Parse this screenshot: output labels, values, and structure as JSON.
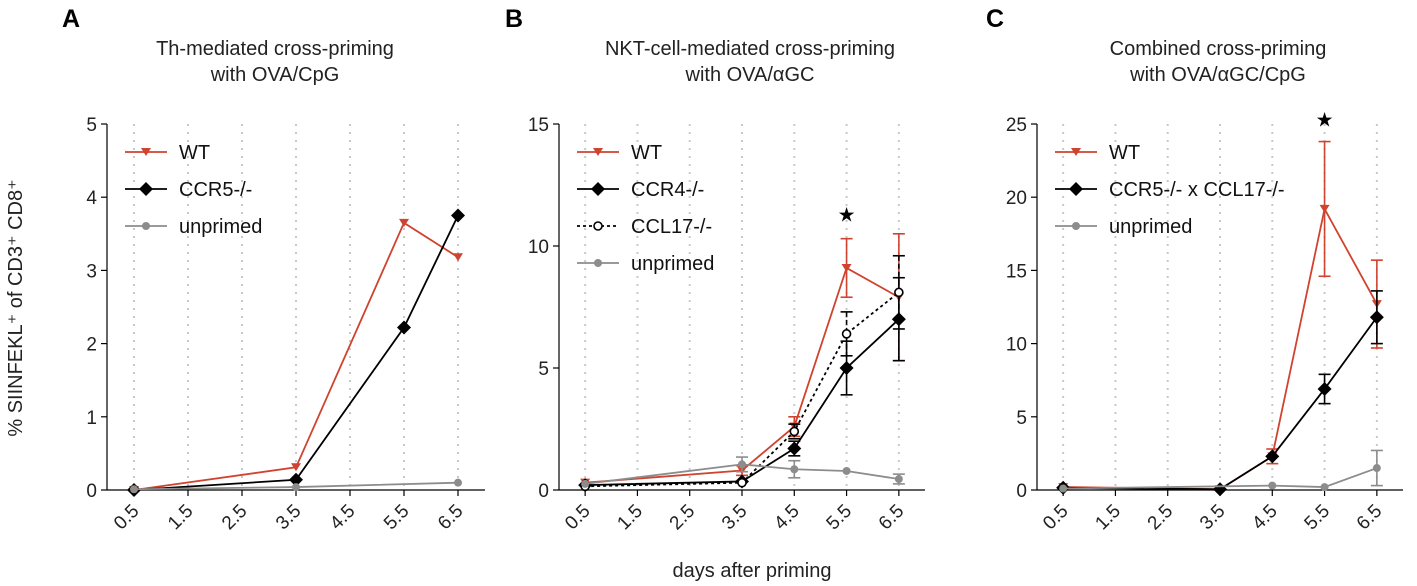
{
  "figure": {
    "xlabel_shared": "days after priming",
    "ylabel_shared": "% SIINFEKL⁺ of CD3⁺ CD8⁺"
  },
  "colors": {
    "wt": "#d0432f",
    "ko": "#000000",
    "unprimed": "#8c8c8c"
  },
  "chart_data": [
    {
      "panel": "A",
      "type": "line",
      "title": [
        "Th-mediated cross-priming",
        "with OVA/CpG"
      ],
      "xlabel": "days after priming",
      "ylabel": "% SIINFEKL⁺ of CD3⁺ CD8⁺",
      "categories": [
        "0.5",
        "1.5",
        "2.5",
        "3.5",
        "4.5",
        "5.5",
        "6.5"
      ],
      "ylim": [
        0,
        5
      ],
      "yticks": [
        0,
        1,
        2,
        3,
        4,
        5
      ],
      "grid": "vertical dotted",
      "legend_position": "top-left",
      "series": [
        {
          "name": "WT",
          "color_key": "wt",
          "marker": "triangle-down",
          "dash": "solid",
          "points": [
            {
              "x": 0.5,
              "y": 0.0
            },
            {
              "x": 3.5,
              "y": 0.31
            },
            {
              "x": 5.5,
              "y": 3.65
            },
            {
              "x": 6.5,
              "y": 3.18
            }
          ]
        },
        {
          "name": "CCR5-/-",
          "color_key": "ko",
          "marker": "diamond",
          "dash": "solid",
          "points": [
            {
              "x": 0.5,
              "y": 0.0
            },
            {
              "x": 3.5,
              "y": 0.14
            },
            {
              "x": 5.5,
              "y": 2.22
            },
            {
              "x": 6.5,
              "y": 3.75
            }
          ]
        },
        {
          "name": "unprimed",
          "color_key": "unprimed",
          "marker": "circle",
          "dash": "solid",
          "points": [
            {
              "x": 0.5,
              "y": 0.01
            },
            {
              "x": 3.5,
              "y": 0.04
            },
            {
              "x": 6.5,
              "y": 0.1
            }
          ]
        }
      ],
      "annotations": []
    },
    {
      "panel": "B",
      "type": "line",
      "title": [
        "NKT-cell-mediated cross-priming",
        "with OVA/αGC"
      ],
      "xlabel": "days after priming",
      "ylabel": "% SIINFEKL⁺ of CD3⁺ CD8⁺",
      "categories": [
        "0.5",
        "1.5",
        "2.5",
        "3.5",
        "4.5",
        "5.5",
        "6.5"
      ],
      "ylim": [
        0,
        15
      ],
      "yticks": [
        0,
        5,
        10,
        15
      ],
      "grid": "vertical dotted",
      "legend_position": "top-left",
      "series": [
        {
          "name": "WT",
          "color_key": "wt",
          "marker": "triangle-down",
          "dash": "solid",
          "points": [
            {
              "x": 0.5,
              "y": 0.3
            },
            {
              "x": 3.5,
              "y": 0.8,
              "err": 0.2
            },
            {
              "x": 4.5,
              "y": 2.6,
              "err": 0.4
            },
            {
              "x": 5.5,
              "y": 9.1,
              "err": 1.2
            },
            {
              "x": 6.5,
              "y": 7.9,
              "err": 2.6
            }
          ]
        },
        {
          "name": "CCR4-/-",
          "color_key": "ko",
          "marker": "diamond",
          "dash": "solid",
          "points": [
            {
              "x": 0.5,
              "y": 0.2
            },
            {
              "x": 3.5,
              "y": 0.35
            },
            {
              "x": 4.5,
              "y": 1.7,
              "err": 0.3
            },
            {
              "x": 5.5,
              "y": 5.0,
              "err": 1.1
            },
            {
              "x": 6.5,
              "y": 7.0,
              "err": 1.7
            }
          ]
        },
        {
          "name": "CCL17-/-",
          "color_key": "ko",
          "marker": "open-circle",
          "dash": "dotted",
          "points": [
            {
              "x": 0.5,
              "y": 0.15
            },
            {
              "x": 3.5,
              "y": 0.3
            },
            {
              "x": 4.5,
              "y": 2.4,
              "err": 0.3
            },
            {
              "x": 5.5,
              "y": 6.4,
              "err": 0.9
            },
            {
              "x": 6.5,
              "y": 8.1,
              "err": 1.5
            }
          ]
        },
        {
          "name": "unprimed",
          "color_key": "unprimed",
          "marker": "circle",
          "dash": "solid",
          "points": [
            {
              "x": 0.5,
              "y": 0.25
            },
            {
              "x": 3.5,
              "y": 1.05,
              "err": 0.3
            },
            {
              "x": 4.5,
              "y": 0.85,
              "err": 0.35
            },
            {
              "x": 5.5,
              "y": 0.78
            },
            {
              "x": 6.5,
              "y": 0.45,
              "err": 0.2
            }
          ]
        }
      ],
      "annotations": [
        {
          "text": "★",
          "x": 5.5,
          "y": 11.3
        }
      ]
    },
    {
      "panel": "C",
      "type": "line",
      "title": [
        "Combined cross-priming",
        "with OVA/αGC/CpG"
      ],
      "xlabel": "days after priming",
      "ylabel": "% SIINFEKL⁺ of CD3⁺ CD8⁺",
      "categories": [
        "0.5",
        "1.5",
        "2.5",
        "3.5",
        "4.5",
        "5.5",
        "6.5"
      ],
      "ylim": [
        0,
        25
      ],
      "yticks": [
        0,
        5,
        10,
        15,
        20,
        25
      ],
      "grid": "vertical dotted",
      "legend_position": "top-left",
      "series": [
        {
          "name": "WT",
          "color_key": "wt",
          "marker": "triangle-down",
          "dash": "solid",
          "points": [
            {
              "x": 0.5,
              "y": 0.2
            },
            {
              "x": 3.5,
              "y": 0.05
            },
            {
              "x": 4.5,
              "y": 2.3,
              "err": 0.5
            },
            {
              "x": 5.5,
              "y": 19.2,
              "err": 4.6
            },
            {
              "x": 6.5,
              "y": 12.7,
              "err": 3.0
            }
          ]
        },
        {
          "name": "CCR5-/- x CCL17-/-",
          "color_key": "ko",
          "marker": "diamond",
          "dash": "solid",
          "points": [
            {
              "x": 0.5,
              "y": 0.15
            },
            {
              "x": 3.5,
              "y": 0.05
            },
            {
              "x": 4.5,
              "y": 2.3
            },
            {
              "x": 5.5,
              "y": 6.9,
              "err": 1.0
            },
            {
              "x": 6.5,
              "y": 11.8,
              "err": 1.8
            }
          ]
        },
        {
          "name": "unprimed",
          "color_key": "unprimed",
          "marker": "circle",
          "dash": "solid",
          "points": [
            {
              "x": 0.5,
              "y": 0.1
            },
            {
              "x": 4.5,
              "y": 0.3
            },
            {
              "x": 5.5,
              "y": 0.2
            },
            {
              "x": 6.5,
              "y": 1.5,
              "err": 1.2
            }
          ]
        }
      ],
      "annotations": [
        {
          "text": "★",
          "x": 5.5,
          "y": 25.3
        }
      ]
    }
  ]
}
